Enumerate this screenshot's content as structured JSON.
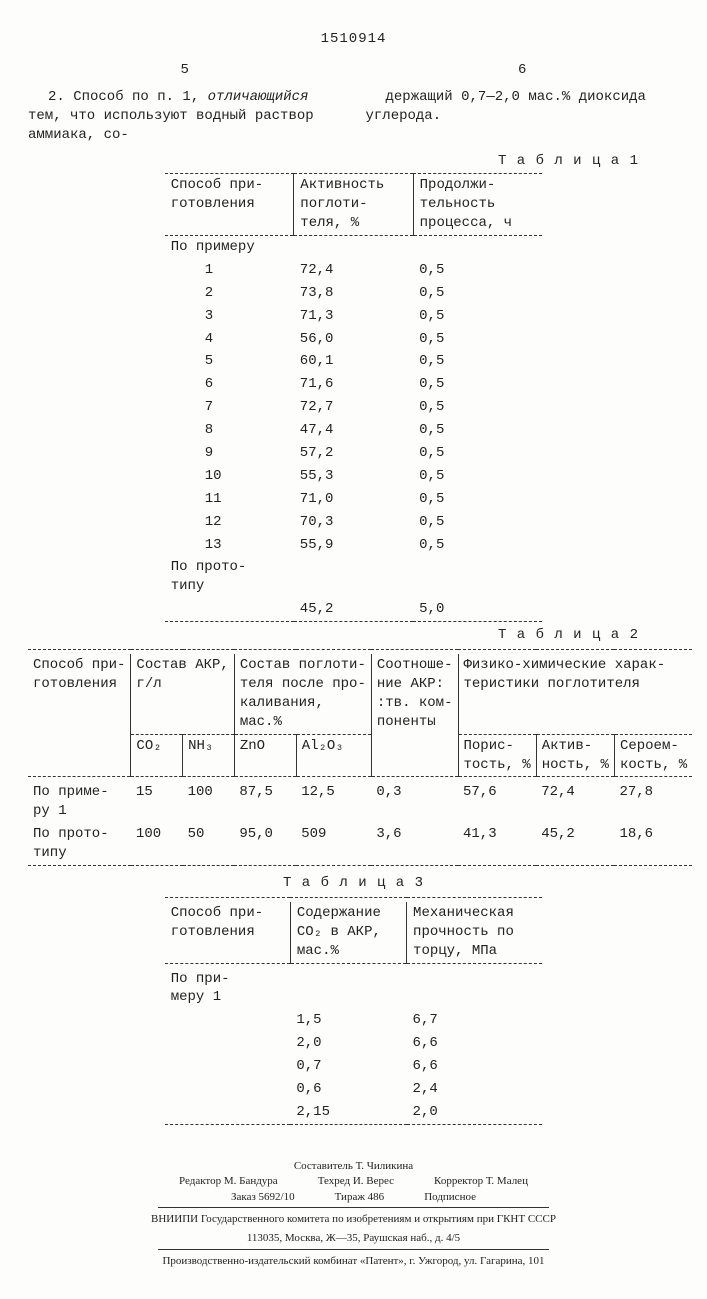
{
  "doc_number": "1510914",
  "col_left_num": "5",
  "col_right_num": "6",
  "claim_left": "2. Способ по п. 1, отличающийся тем, что используют водный раствор аммиака, со-",
  "claim_right": "держащий 0,7—2,0 мас.% диоксида углерода.",
  "table1": {
    "label": "Т а б л и ц а 1",
    "headers": [
      "Способ при-\nготовления",
      "Активность\nпоглоти-\nтеля, %",
      "Продолжи-\nтельность\nпроцесса, ч"
    ],
    "section": "По примеру",
    "rows": [
      [
        "1",
        "72,4",
        "0,5"
      ],
      [
        "2",
        "73,8",
        "0,5"
      ],
      [
        "3",
        "71,3",
        "0,5"
      ],
      [
        "4",
        "56,0",
        "0,5"
      ],
      [
        "5",
        "60,1",
        "0,5"
      ],
      [
        "6",
        "71,6",
        "0,5"
      ],
      [
        "7",
        "72,7",
        "0,5"
      ],
      [
        "8",
        "47,4",
        "0,5"
      ],
      [
        "9",
        "57,2",
        "0,5"
      ],
      [
        "10",
        "55,3",
        "0,5"
      ],
      [
        "11",
        "71,0",
        "0,5"
      ],
      [
        "12",
        "70,3",
        "0,5"
      ],
      [
        "13",
        "55,9",
        "0,5"
      ]
    ],
    "proto_label": "По прото-\nтипу",
    "proto_row": [
      "",
      "45,2",
      "5,0"
    ]
  },
  "table2": {
    "label": "Т а б л и ц а 2",
    "h1": [
      "Способ при-\nготовления",
      "Состав АКР,\nг/л",
      "Состав поглоти-\nтеля после про-\nкаливания,\nмас.%",
      "Соотноше-\nние АКР:\n:тв. ком-\nпоненты",
      "Физико-химические харак-\nтеристики поглотителя"
    ],
    "h2_sub_akp": [
      "CO₂",
      "NH₃"
    ],
    "h2_sub_cal": [
      "ZnO",
      "Al₂O₃"
    ],
    "h2_sub_phys": [
      "Порис-\nтость, %",
      "Актив-\nность, %",
      "Сероем-\nкость, %"
    ],
    "rows": [
      {
        "name": "По приме-\nру 1",
        "co2": "15",
        "nh3": "100",
        "zno": "87,5",
        "al2o3": "12,5",
        "ratio": "0,3",
        "por": "57,6",
        "act": "72,4",
        "sero": "27,8"
      },
      {
        "name": "По прото-\nтипу",
        "co2": "100",
        "nh3": "50",
        "zno": "95,0",
        "al2o3": "509",
        "ratio": "3,6",
        "por": "41,3",
        "act": "45,2",
        "sero": "18,6"
      }
    ]
  },
  "table3": {
    "label": "Т а б л и ц а 3",
    "headers": [
      "Способ при-\nготовления",
      "Содержание\nCO₂ в АКР,\nмас.%",
      "Механическая\nпрочность по\nторцу, МПа"
    ],
    "section": "По при-\nмеру 1",
    "rows": [
      [
        "",
        "1,5",
        "6,7"
      ],
      [
        "",
        "2,0",
        "6,6"
      ],
      [
        "",
        "0,7",
        "6,6"
      ],
      [
        "",
        "0,6",
        "2,4"
      ],
      [
        "",
        "2,15",
        "2,0"
      ]
    ]
  },
  "footer": {
    "compiler": "Составитель Т. Чиликина",
    "editor": "Редактор М. Бандура",
    "techred": "Техред И. Верес",
    "corrector": "Корректор Т. Малец",
    "order": "Заказ 5692/10",
    "tirage": "Тираж 486",
    "sign": "Подписное",
    "org": "ВНИИПИ Государственного комитета по изобретениям и открытиям при ГКНТ СССР",
    "addr": "113035, Москва, Ж—35, Раушская наб., д. 4/5",
    "printer": "Производственно-издательский комбинат «Патент», г. Ужгород, ул. Гагарина, 101"
  }
}
